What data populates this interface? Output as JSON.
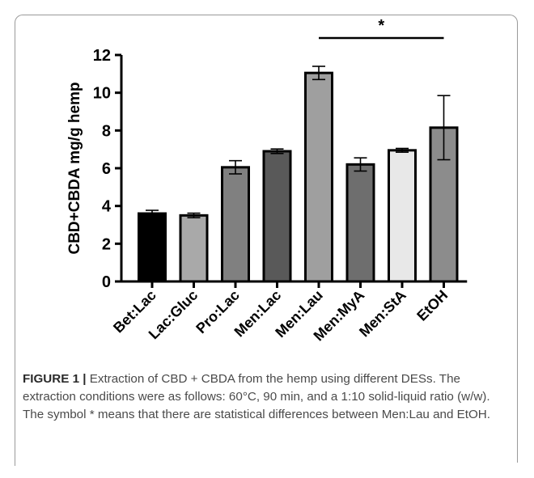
{
  "chart_data": {
    "type": "bar",
    "ylabel": "CBD+CBDA mg/g hemp",
    "xlabel": "",
    "ylim": [
      0,
      12
    ],
    "yticks": [
      0,
      2,
      4,
      6,
      8,
      10,
      12
    ],
    "categories": [
      "Bet:Lac",
      "Lac:Gluc",
      "Pro:Lac",
      "Men:Lac",
      "Men:Lau",
      "Men:MyA",
      "Men:StA",
      "EtOH"
    ],
    "values": [
      3.6,
      3.5,
      6.05,
      6.9,
      11.05,
      6.2,
      6.95,
      8.15
    ],
    "errors": [
      0.17,
      0.12,
      0.35,
      0.12,
      0.35,
      0.35,
      0.1,
      1.7
    ],
    "bar_colors": [
      "#000000",
      "#a9a9a9",
      "#808080",
      "#595959",
      "#9f9f9f",
      "#6e6e6e",
      "#e8e8e8",
      "#8c8c8c"
    ],
    "significance": {
      "from": "Men:Lau",
      "to": "EtOH",
      "label": "*"
    }
  },
  "caption": {
    "lead": "FIGURE 1 |",
    "text": " Extraction of CBD + CBDA from the hemp using different DESs. The extraction conditions were as follows: 60°C, 90 min, and a 1:10 solid-liquid ratio (w/w). The symbol * means that there are statistical differences between Men:Lau and EtOH."
  }
}
